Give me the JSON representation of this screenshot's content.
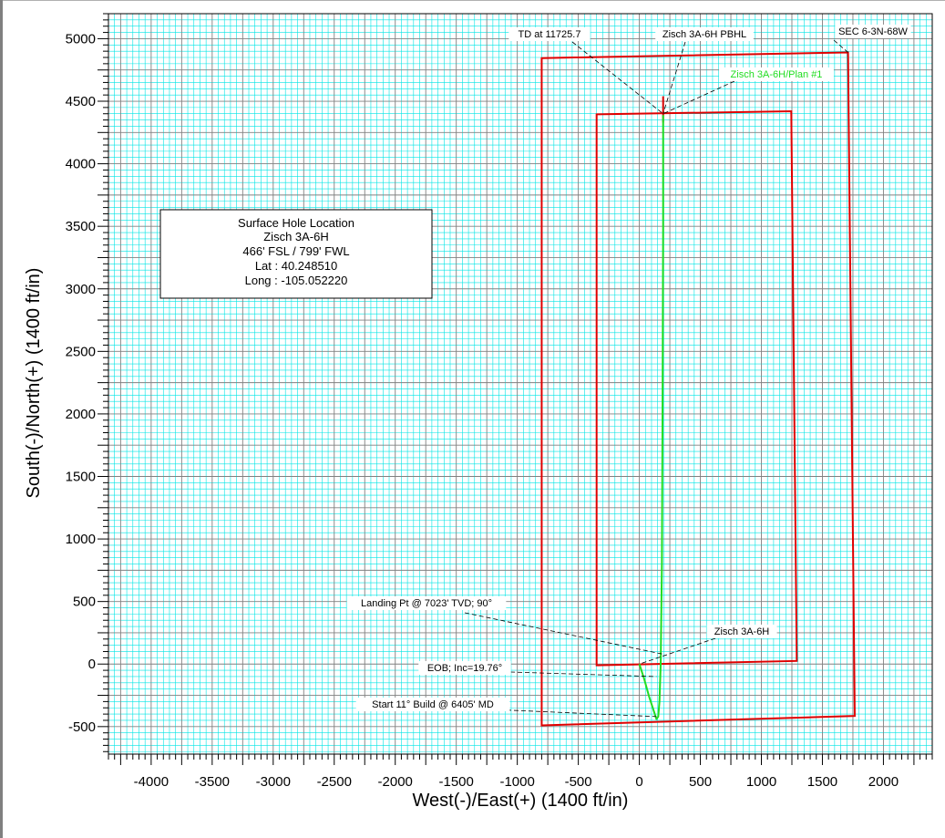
{
  "chart_data": {
    "type": "line",
    "title": "",
    "xlabel": "West(-)/East(+) (1400 ft/in)",
    "ylabel": "South(-)/North(+) (1400 ft/in)",
    "xlim": [
      -4350,
      2400
    ],
    "ylim": [
      -720,
      5200
    ],
    "x_ticks": [
      -4000,
      -3500,
      -3000,
      -2500,
      -2000,
      -1500,
      -1000,
      -500,
      0,
      500,
      1000,
      1500,
      2000
    ],
    "y_ticks": [
      -500,
      0,
      500,
      1000,
      1500,
      2000,
      2500,
      3000,
      3500,
      4000,
      4500,
      5000
    ],
    "grid": true,
    "colors": {
      "minor_grid": "#00e5e5",
      "major_grid": "#808080",
      "section": "#e00000",
      "plan": "#22dd22",
      "target": "#e00000"
    },
    "section_boundary": {
      "label": "SEC 6-3N-68W",
      "points": [
        [
          -800,
          -490
        ],
        [
          1765,
          -415
        ],
        [
          1710,
          4890
        ],
        [
          -800,
          4845
        ]
      ]
    },
    "hardline_boundary": {
      "points": [
        [
          -350,
          -10
        ],
        [
          1290,
          25
        ],
        [
          1245,
          4420
        ],
        [
          -350,
          4395
        ]
      ]
    },
    "series": [
      {
        "name": "Zisch 3A-6H/Plan #1",
        "x": [
          0,
          40,
          80,
          120,
          140,
          155,
          165,
          175,
          185,
          190,
          195,
          195
        ],
        "y": [
          0,
          -120,
          -260,
          -380,
          -440,
          -420,
          -300,
          0,
          800,
          2000,
          3500,
          4390
        ]
      }
    ],
    "target_marker": {
      "x": 195,
      "y": [
        4330,
        4540
      ]
    },
    "annotations": [
      {
        "id": "td",
        "text": "TD at 11725.7",
        "color": "#000000",
        "point": [
          195,
          4400
        ]
      },
      {
        "id": "pbhl",
        "text": "Zisch 3A-6H PBHL",
        "color": "#000000",
        "point": [
          195,
          4400
        ]
      },
      {
        "id": "section",
        "text": "SEC 6-3N-68W",
        "color": "#000000",
        "point": [
          1710,
          4890
        ]
      },
      {
        "id": "plan",
        "text": "Zisch 3A-6H/Plan #1",
        "color": "#22dd22",
        "point": [
          195,
          4400
        ]
      },
      {
        "id": "landing",
        "text": "Landing Pt @ 7023' TVD; 90°",
        "color": "#000000",
        "point": [
          190,
          80
        ]
      },
      {
        "id": "well",
        "text": "Zisch 3A-6H",
        "color": "#000000",
        "point": [
          0,
          0
        ]
      },
      {
        "id": "eob",
        "text": "EOB; Inc=19.76°",
        "color": "#000000",
        "point": [
          140,
          -100
        ]
      },
      {
        "id": "start",
        "text": "Start 11° Build @ 6405' MD",
        "color": "#000000",
        "point": [
          140,
          -420
        ]
      }
    ],
    "info_box": {
      "lines": [
        "Surface Hole Location",
        "Zisch 3A-6H",
        "466' FSL / 799' FWL",
        "Lat : 40.248510",
        "Long : -105.052220"
      ]
    }
  }
}
